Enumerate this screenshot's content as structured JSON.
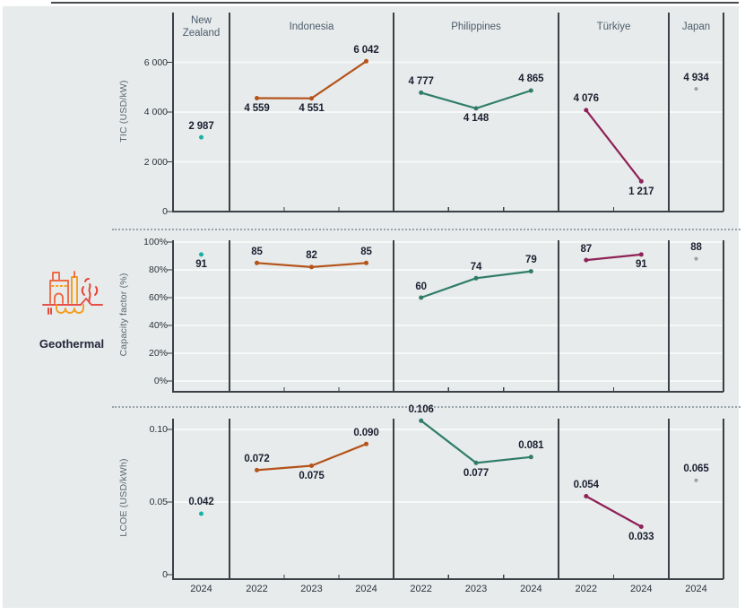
{
  "figure": {
    "icon_label": "Geothermal"
  },
  "chart_data": {
    "type": "line",
    "title": "Geothermal",
    "legend_position": "none",
    "grid": true,
    "panels": [
      {
        "country": "New Zealand",
        "years": [
          "2024"
        ]
      },
      {
        "country": "Indonesia",
        "years": [
          "2022",
          "2023",
          "2024"
        ]
      },
      {
        "country": "Philippines",
        "years": [
          "2022",
          "2023",
          "2024"
        ]
      },
      {
        "country": "Türkiye",
        "years": [
          "2022",
          "2024"
        ]
      },
      {
        "country": "Japan",
        "years": [
          "2024"
        ]
      }
    ],
    "colors": {
      "New Zealand": "#18b1a6",
      "Indonesia": "#b4531a",
      "Philippines": "#2f7d68",
      "Türkiye": "#8e2157",
      "Japan": "#9aa0a3"
    },
    "rows": [
      {
        "metric": "TIC (USD/kW)",
        "ylim": [
          0,
          8000
        ],
        "ytick_values": [
          0,
          2000,
          4000,
          6000
        ],
        "ytick_labels": [
          "0",
          "2 000",
          "4 000",
          "6 000"
        ],
        "values": {
          "New Zealand": [
            2987
          ],
          "Indonesia": [
            4559,
            4551,
            6042
          ],
          "Philippines": [
            4777,
            4148,
            4865
          ],
          "Türkiye": [
            4076,
            1217
          ],
          "Japan": [
            4934
          ]
        },
        "labels": {
          "New Zealand": [
            "2 987"
          ],
          "Indonesia": [
            "4 559",
            "4 551",
            "6 042"
          ],
          "Philippines": [
            "4 777",
            "4 148",
            "4 865"
          ],
          "Türkiye": [
            "4 076",
            "1 217"
          ],
          "Japan": [
            "4 934"
          ]
        },
        "label_pos": {
          "New Zealand": [
            "above"
          ],
          "Indonesia": [
            "below",
            "below",
            "above"
          ],
          "Philippines": [
            "above",
            "below",
            "above"
          ],
          "Türkiye": [
            "above",
            "below"
          ],
          "Japan": [
            "above"
          ]
        }
      },
      {
        "metric": "Capacity factor (%)",
        "ylim": [
          0,
          107
        ],
        "ytick_values": [
          0,
          20,
          40,
          60,
          80,
          100
        ],
        "ytick_labels": [
          "0%",
          "20%",
          "40%",
          "60%",
          "80%",
          "100%"
        ],
        "values": {
          "New Zealand": [
            91
          ],
          "Indonesia": [
            85,
            82,
            85
          ],
          "Philippines": [
            60,
            74,
            79
          ],
          "Türkiye": [
            87,
            91
          ],
          "Japan": [
            88
          ]
        },
        "labels": {
          "New Zealand": [
            "91"
          ],
          "Indonesia": [
            "85",
            "82",
            "85"
          ],
          "Philippines": [
            "60",
            "74",
            "79"
          ],
          "Türkiye": [
            "87",
            "91"
          ],
          "Japan": [
            "88"
          ]
        },
        "label_pos": {
          "New Zealand": [
            "below"
          ],
          "Indonesia": [
            "above",
            "above",
            "above"
          ],
          "Philippines": [
            "above",
            "above",
            "above"
          ],
          "Türkiye": [
            "above",
            "below"
          ],
          "Japan": [
            "above"
          ]
        }
      },
      {
        "metric": "LCOE (USD/kWh)",
        "ylim": [
          0,
          0.112
        ],
        "ytick_values": [
          0,
          0.05,
          0.1
        ],
        "ytick_labels": [
          "0",
          "0.05",
          "0.10"
        ],
        "values": {
          "New Zealand": [
            0.042
          ],
          "Indonesia": [
            0.072,
            0.075,
            0.09
          ],
          "Philippines": [
            0.106,
            0.077,
            0.081
          ],
          "Türkiye": [
            0.054,
            0.033
          ],
          "Japan": [
            0.065
          ]
        },
        "labels": {
          "New Zealand": [
            "0.042"
          ],
          "Indonesia": [
            "0.072",
            "0.075",
            "0.090"
          ],
          "Philippines": [
            "0.106",
            "0.077",
            "0.081"
          ],
          "Türkiye": [
            "0.054",
            "0.033"
          ],
          "Japan": [
            "0.065"
          ]
        },
        "label_pos": {
          "New Zealand": [
            "above"
          ],
          "Indonesia": [
            "above",
            "below",
            "above"
          ],
          "Philippines": [
            "above",
            "below",
            "above"
          ],
          "Türkiye": [
            "above",
            "below"
          ],
          "Japan": [
            "above"
          ]
        }
      }
    ]
  }
}
